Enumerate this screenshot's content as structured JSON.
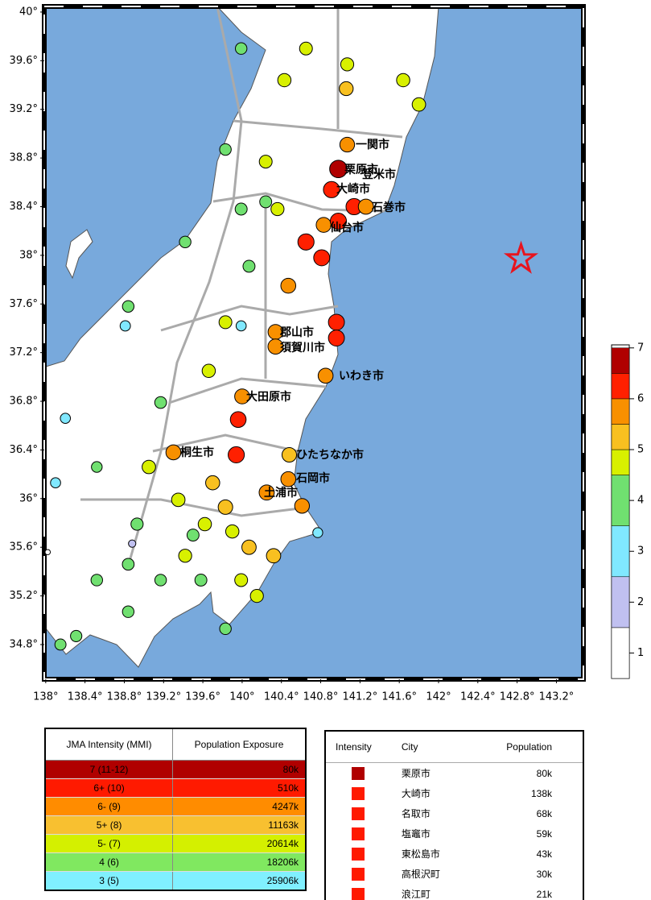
{
  "map": {
    "xticks": [
      {
        "value": 138,
        "label": "138°"
      },
      {
        "value": 138.4,
        "label": "138.4°"
      },
      {
        "value": 138.8,
        "label": "138.8°"
      },
      {
        "value": 139.2,
        "label": "139.2°"
      },
      {
        "value": 139.6,
        "label": "139.6°"
      },
      {
        "value": 140,
        "label": "140°"
      },
      {
        "value": 140.4,
        "label": "140.4°"
      },
      {
        "value": 140.8,
        "label": "140.8°"
      },
      {
        "value": 141.2,
        "label": "141.2°"
      },
      {
        "value": 141.6,
        "label": "141.6°"
      },
      {
        "value": 142,
        "label": "142°"
      },
      {
        "value": 142.4,
        "label": "142.4°"
      },
      {
        "value": 142.8,
        "label": "142.8°"
      },
      {
        "value": 143.2,
        "label": "143.2°"
      }
    ],
    "yticks": [
      {
        "value": 40,
        "label": "40°"
      },
      {
        "value": 39.6,
        "label": "39.6°"
      },
      {
        "value": 39.2,
        "label": "39.2°"
      },
      {
        "value": 38.8,
        "label": "38.8°"
      },
      {
        "value": 38.4,
        "label": "38.4°"
      },
      {
        "value": 38,
        "label": "38°"
      },
      {
        "value": 37.6,
        "label": "37.6°"
      },
      {
        "value": 37.2,
        "label": "37.2°"
      },
      {
        "value": 36.8,
        "label": "36.8°"
      },
      {
        "value": 36.4,
        "label": "36.4°"
      },
      {
        "value": 36,
        "label": "36°"
      },
      {
        "value": 35.6,
        "label": "35.6°"
      },
      {
        "value": 35.2,
        "label": "35.2°"
      },
      {
        "value": 34.8,
        "label": "34.8°"
      }
    ],
    "xlim": [
      137.985,
      143.475
    ],
    "ylim": [
      34.515,
      40.046
    ],
    "epicenter": {
      "lon": 142.84,
      "lat": 37.97,
      "color": "#e8141e"
    },
    "stations": {
      "lon": [
        141.07,
        140.98,
        140.91,
        141.14,
        141.26,
        140.83,
        140.98,
        140.65,
        140.81,
        140.47,
        140.34,
        140.34,
        140.96,
        140.96,
        140.85,
        140.0,
        139.96,
        139.94,
        139.3,
        140.48,
        140.47,
        140.25,
        140.61,
        140.77,
        140.07,
        139.9,
        139.62,
        139.5,
        139.42,
        139.58,
        139.17,
        138.84,
        138.52,
        138.31,
        138.15,
        138.1,
        138.2,
        138.84,
        138.81,
        139.42,
        139.99,
        140.24,
        139.83,
        139.99,
        140.65,
        141.06,
        141.07,
        141.64,
        141.8,
        140.43,
        140.24,
        140.36,
        140.07,
        139.83,
        139.99,
        139.66,
        139.17,
        138.52,
        138.84,
        139.83,
        139.99,
        140.15,
        140.32,
        139.05,
        139.35,
        139.7,
        139.83,
        138.93,
        138.02,
        138.88
      ],
      "lat": [
        38.91,
        38.71,
        38.54,
        38.4,
        38.4,
        38.25,
        38.28,
        38.11,
        37.98,
        37.75,
        37.37,
        37.25,
        37.45,
        37.32,
        37.01,
        36.84,
        36.65,
        36.36,
        36.38,
        36.36,
        36.16,
        36.05,
        35.94,
        35.72,
        35.6,
        35.73,
        35.79,
        35.7,
        35.53,
        35.33,
        35.33,
        35.07,
        35.33,
        34.87,
        34.8,
        36.13,
        36.66,
        37.58,
        37.42,
        38.11,
        38.38,
        38.44,
        38.87,
        39.7,
        39.7,
        39.37,
        39.57,
        39.44,
        39.24,
        39.44,
        38.77,
        38.38,
        37.91,
        37.45,
        37.42,
        37.05,
        36.79,
        36.26,
        35.46,
        34.93,
        35.33,
        35.2,
        35.53,
        36.26,
        35.99,
        36.13,
        35.93,
        35.79,
        35.56,
        35.63
      ],
      "intensity": [
        5.5,
        6.8,
        6.2,
        6.2,
        5.7,
        5.6,
        6.2,
        6.2,
        6.1,
        5.6,
        5.6,
        5.7,
        6.1,
        6.1,
        5.6,
        5.6,
        6.0,
        6.2,
        5.6,
        5.4,
        5.6,
        5.7,
        5.5,
        3.2,
        5.3,
        4.8,
        4.8,
        4.2,
        4.7,
        4.2,
        4.0,
        4.0,
        4.0,
        3.9,
        3.8,
        3.3,
        3.3,
        4.0,
        3.4,
        4.0,
        4.2,
        4.2,
        4.0,
        4.0,
        4.6,
        5.1,
        4.7,
        4.8,
        4.9,
        4.8,
        4.6,
        4.7,
        4.2,
        4.6,
        3.3,
        4.8,
        4.1,
        3.6,
        4.1,
        4.0,
        4.6,
        4.7,
        5.3,
        4.9,
        4.9,
        5.2,
        5.4,
        4.3,
        1.0,
        2.0
      ]
    },
    "cities": [
      "一関市",
      "栗原市",
      "登米市",
      "大崎市",
      "石巻市",
      "仙台市",
      "郡山市",
      "須賀川市",
      "いわき市",
      "大田原市",
      "ひたちなか市",
      "桐生市",
      "石岡市",
      "土浦市"
    ]
  },
  "colorbar": {
    "ticks": [
      1,
      2,
      3,
      4,
      5,
      6,
      7
    ],
    "ylim": [
      0.5,
      7.06
    ],
    "bins": [
      0.5,
      1.5,
      2.5,
      3.5,
      4.5,
      5,
      5.5,
      6,
      6.5,
      7
    ],
    "colors": [
      "#ffffff",
      "#c0c0f0",
      "#80e8ff",
      "#70e070",
      "#d8f000",
      "#f8c020",
      "#f89000",
      "#ff2000",
      "#b00000"
    ]
  },
  "intensity_table": {
    "header": [
      "JMA Intensity (MMI)",
      "Population Exposure"
    ],
    "rows": [
      [
        "7 (11-12)",
        "80k"
      ],
      [
        "6+ (10)",
        "510k"
      ],
      [
        "6- (9)",
        "4247k"
      ],
      [
        "5+ (8)",
        "11163k"
      ],
      [
        "5- (7)",
        "20614k"
      ],
      [
        "4 (6)",
        "18206k"
      ],
      [
        "3 (5)",
        "25906k"
      ]
    ],
    "colors": [
      "#b00000",
      "#ff1a00",
      "#ff8c00",
      "#f8c030",
      "#d4f000",
      "#80e860",
      "#80f0ff"
    ]
  },
  "city_table": {
    "header": [
      "Intensity",
      "City",
      "Population"
    ],
    "rows": [
      [
        "栗原市",
        "80k"
      ],
      [
        "大崎市",
        "138k"
      ],
      [
        "名取市",
        "68k"
      ],
      [
        "塩竈市",
        "59k"
      ],
      [
        "東松島市",
        "43k"
      ],
      [
        "高根沢町",
        "30k"
      ],
      [
        "浪江町",
        "21k"
      ]
    ],
    "colors": [
      "#b00000",
      "#ff1a00",
      "#ff1a00",
      "#ff1a00",
      "#ff1a00",
      "#ff1a00",
      "#ff1a00"
    ]
  }
}
